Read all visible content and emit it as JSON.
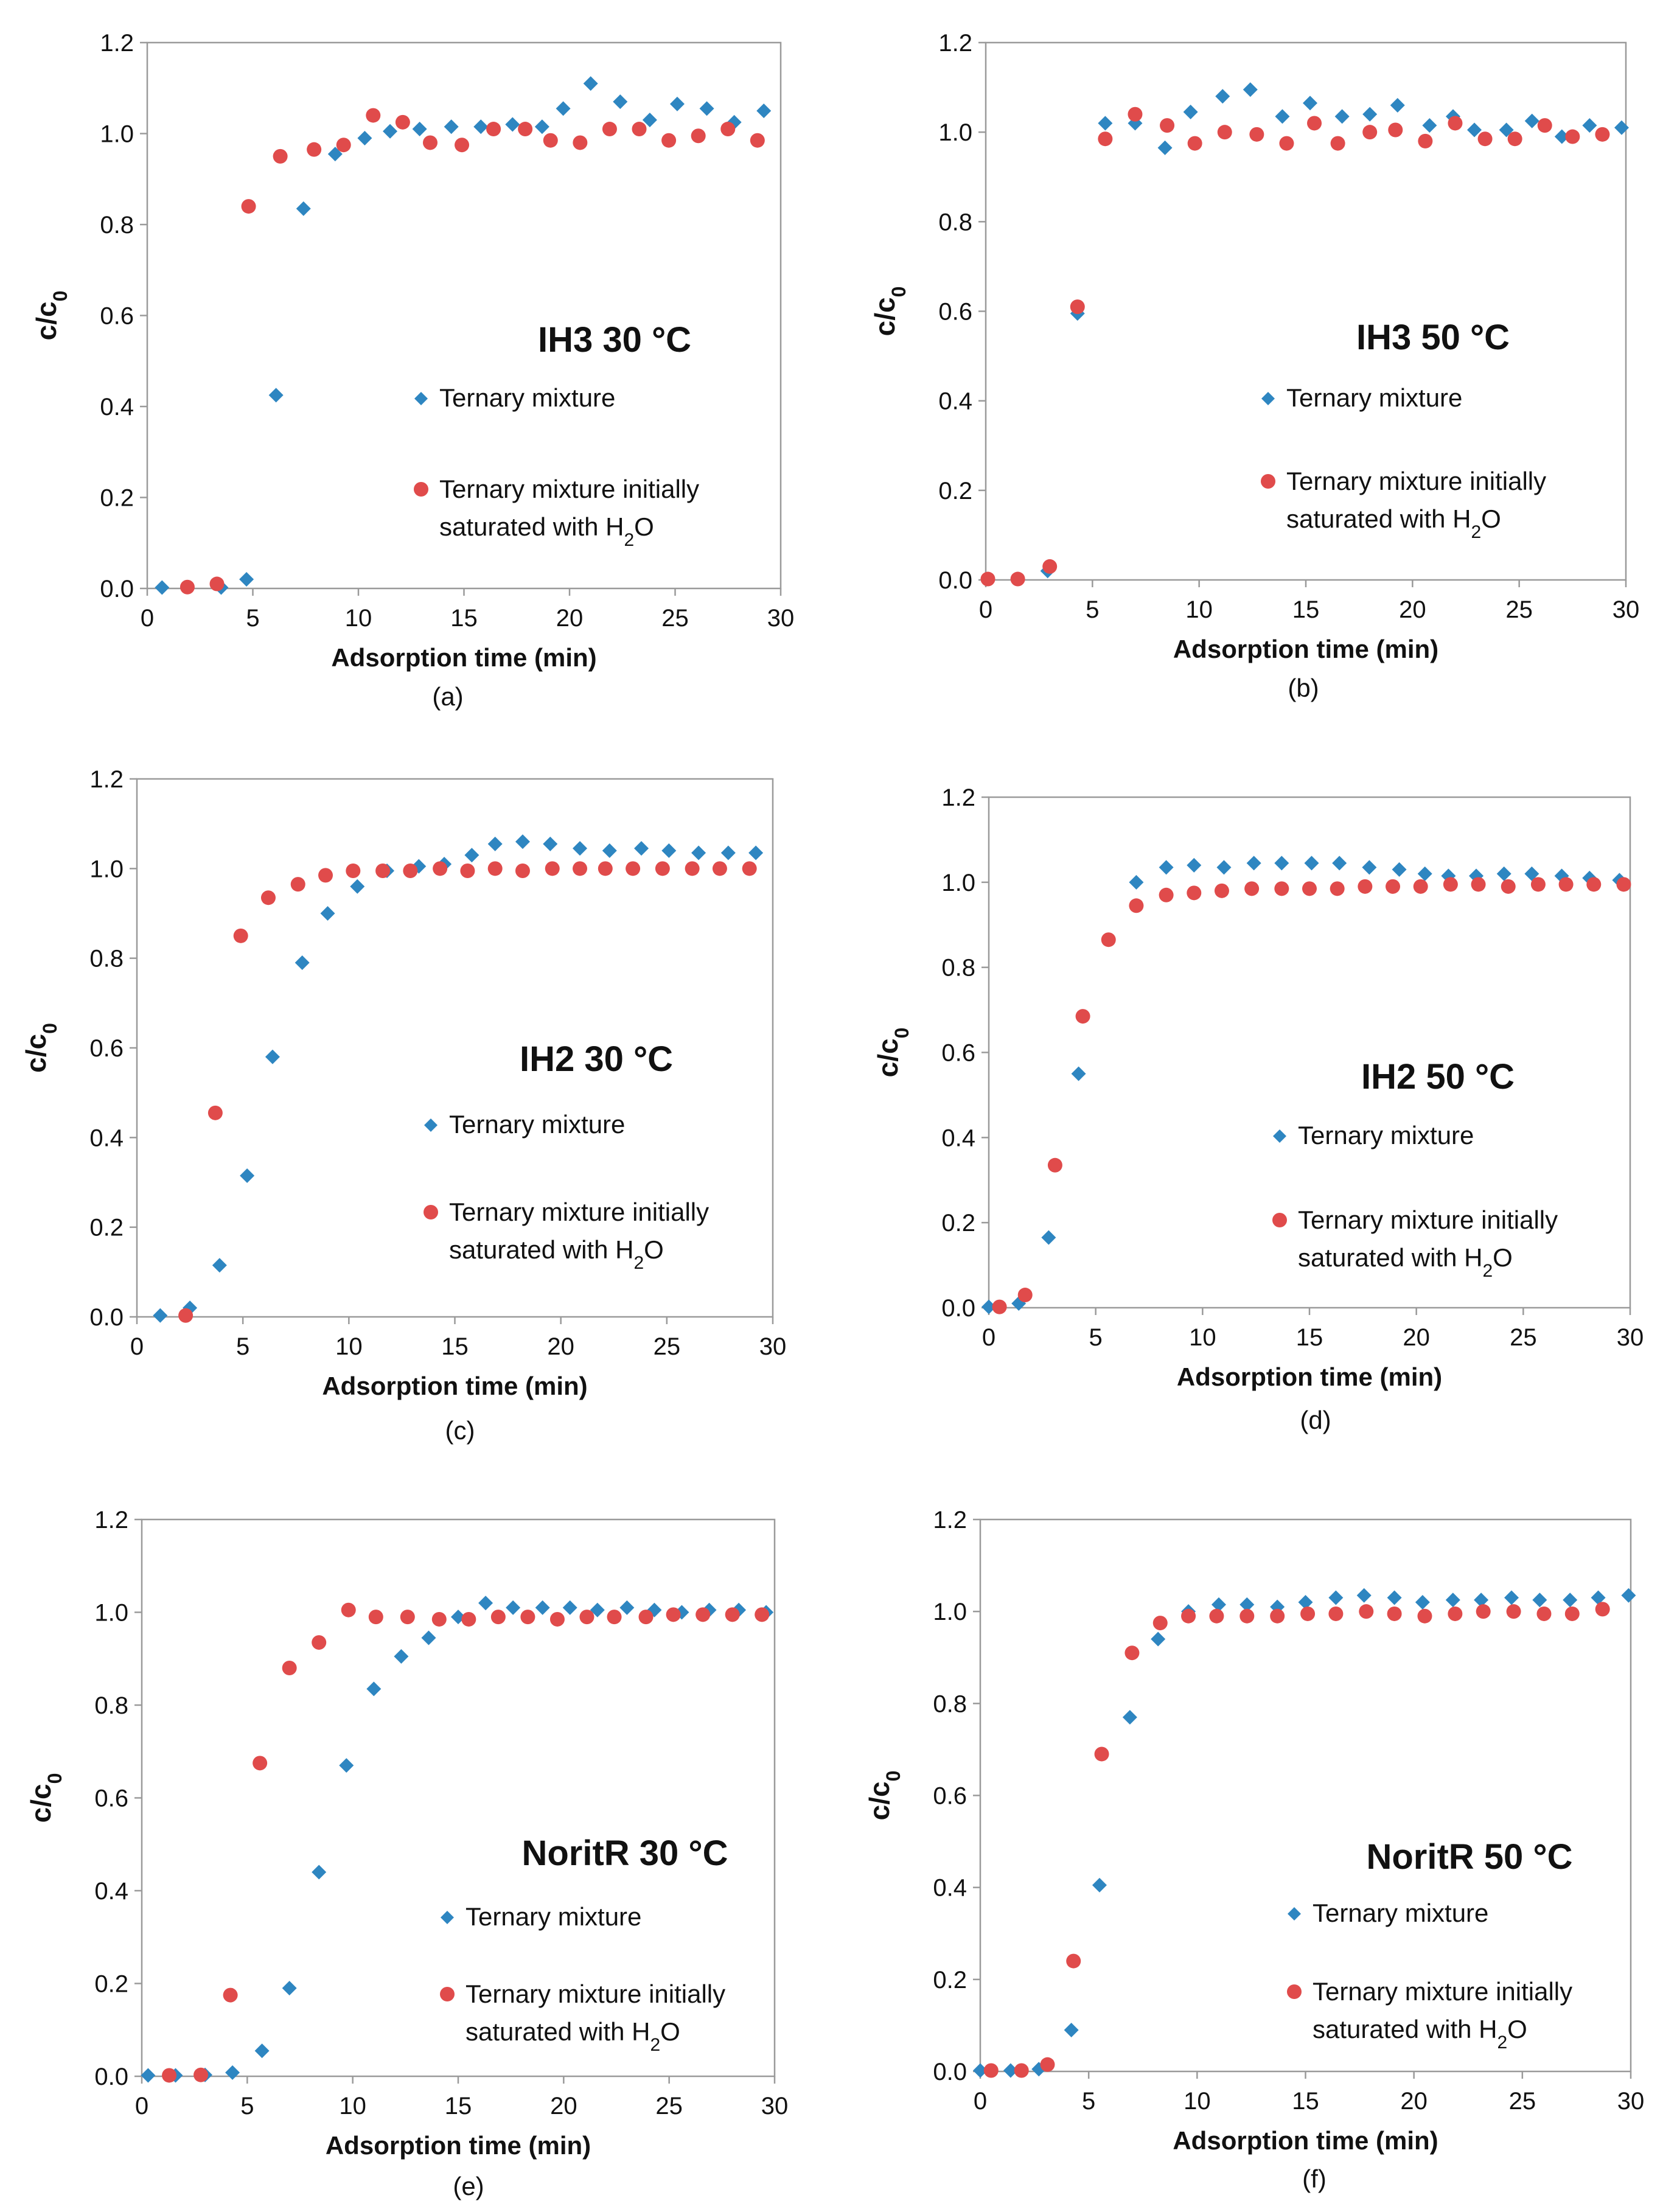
{
  "series_colors": {
    "ternary": "#2e86c1",
    "saturated": "#e04b4b"
  },
  "panel_layouts": [
    "grid-top-left",
    "grid-top-right",
    "grid-middle-left",
    "grid-middle-right",
    "grid-bottom-left",
    "grid-bottom-right"
  ],
  "chart_data": [
    {
      "type": "scatter",
      "caption": "(a)",
      "title": "IH3 30 °C",
      "xlabel": "Adsorption time (min)",
      "ylabel": "c/c",
      "ylabel_sub": "0",
      "xlim": [
        0,
        30
      ],
      "ylim": [
        0,
        1.2
      ],
      "xticks": [
        "0",
        "5",
        "10",
        "15",
        "20",
        "25",
        "30"
      ],
      "yticks": [
        "0.0",
        "0.2",
        "0.4",
        "0.6",
        "0.8",
        "1.0",
        "1.2"
      ],
      "legend": {
        "ternary": "Ternary mixture",
        "saturated_line1": "Ternary mixture initially",
        "saturated_line2_pre": "saturated with H",
        "saturated_line2_sub": "2",
        "saturated_line2_post": "O"
      },
      "series": [
        {
          "name": "Ternary mixture",
          "marker": "diamond",
          "x": [
            0.7,
            3.5,
            4.7,
            6.1,
            7.4,
            8.9,
            10.3,
            11.5,
            12.9,
            14.4,
            15.8,
            17.3,
            18.7,
            19.7,
            21.0,
            22.4,
            23.8,
            25.1,
            26.5,
            27.8,
            29.2
          ],
          "y": [
            0.002,
            0.002,
            0.02,
            0.425,
            0.835,
            0.955,
            0.99,
            1.005,
            1.01,
            1.015,
            1.015,
            1.02,
            1.015,
            1.055,
            1.11,
            1.07,
            1.03,
            1.065,
            1.055,
            1.025,
            1.05
          ]
        },
        {
          "name": "Ternary mixture initially saturated with H2O",
          "marker": "circle",
          "x": [
            1.9,
            3.3,
            4.8,
            6.3,
            7.9,
            9.3,
            10.7,
            12.1,
            13.4,
            14.9,
            16.4,
            17.9,
            19.1,
            20.5,
            21.9,
            23.3,
            24.7,
            26.1,
            27.5,
            28.9
          ],
          "y": [
            0.003,
            0.01,
            0.84,
            0.95,
            0.965,
            0.975,
            1.04,
            1.025,
            0.98,
            0.975,
            1.01,
            1.01,
            0.985,
            0.98,
            1.01,
            1.01,
            0.985,
            0.995,
            1.01,
            0.985
          ]
        }
      ]
    },
    {
      "type": "scatter",
      "caption": "(b)",
      "title": "IH3 50 °C",
      "xlabel": "Adsorption time (min)",
      "ylabel": "c/c",
      "ylabel_sub": "0",
      "xlim": [
        0,
        30
      ],
      "ylim": [
        0,
        1.2
      ],
      "xticks": [
        "0",
        "5",
        "10",
        "15",
        "20",
        "25",
        "30"
      ],
      "yticks": [
        "0.0",
        "0.2",
        "0.4",
        "0.6",
        "0.8",
        "1.0",
        "1.2"
      ],
      "legend": {
        "ternary": "Ternary mixture",
        "saturated_line1": "Ternary mixture initially",
        "saturated_line2_pre": "saturated with H",
        "saturated_line2_sub": "2",
        "saturated_line2_post": "O"
      },
      "series": [
        {
          "name": "Ternary mixture",
          "marker": "diamond",
          "x": [
            2.9,
            4.3,
            5.6,
            7.0,
            8.4,
            9.6,
            11.1,
            12.4,
            13.9,
            15.2,
            16.7,
            18.0,
            19.3,
            20.8,
            21.9,
            22.9,
            24.4,
            25.6,
            27.0,
            28.3,
            29.8
          ],
          "y": [
            0.02,
            0.595,
            1.02,
            1.02,
            0.965,
            1.045,
            1.08,
            1.095,
            1.035,
            1.065,
            1.035,
            1.04,
            1.06,
            1.015,
            1.035,
            1.005,
            1.005,
            1.025,
            0.99,
            1.015,
            1.01
          ]
        },
        {
          "name": "Ternary mixture initially saturated with H2O",
          "marker": "circle",
          "x": [
            0.1,
            1.5,
            3.0,
            4.3,
            5.6,
            7.0,
            8.5,
            9.8,
            11.2,
            12.7,
            14.1,
            15.4,
            16.5,
            18.0,
            19.2,
            20.6,
            22.0,
            23.4,
            24.8,
            26.2,
            27.5,
            28.9
          ],
          "y": [
            0.002,
            0.002,
            0.03,
            0.61,
            0.985,
            1.04,
            1.015,
            0.975,
            1.0,
            0.995,
            0.975,
            1.02,
            0.975,
            1.0,
            1.005,
            0.98,
            1.02,
            0.985,
            0.985,
            1.015,
            0.99,
            0.995
          ]
        }
      ]
    },
    {
      "type": "scatter",
      "caption": "(c)",
      "title": "IH2 30 °C",
      "xlabel": "Adsorption time (min)",
      "ylabel": "c/c",
      "ylabel_sub": "0",
      "xlim": [
        0,
        30
      ],
      "ylim": [
        0,
        1.2
      ],
      "xticks": [
        "0",
        "5",
        "10",
        "15",
        "20",
        "25",
        "30"
      ],
      "yticks": [
        "0.0",
        "0.2",
        "0.4",
        "0.6",
        "0.8",
        "1.0",
        "1.2"
      ],
      "legend": {
        "ternary": "Ternary mixture",
        "saturated_line1": "Ternary mixture initially",
        "saturated_line2_pre": "saturated with H",
        "saturated_line2_sub": "2",
        "saturated_line2_post": "O"
      },
      "series": [
        {
          "name": "Ternary mixture",
          "marker": "diamond",
          "x": [
            1.1,
            2.5,
            3.9,
            5.2,
            6.4,
            7.8,
            9.0,
            10.4,
            11.8,
            13.3,
            14.5,
            15.8,
            16.9,
            18.2,
            19.5,
            20.9,
            22.3,
            23.8,
            25.1,
            26.5,
            27.9,
            29.2
          ],
          "y": [
            0.003,
            0.02,
            0.115,
            0.315,
            0.58,
            0.79,
            0.9,
            0.96,
            0.995,
            1.005,
            1.01,
            1.03,
            1.055,
            1.06,
            1.055,
            1.045,
            1.04,
            1.045,
            1.04,
            1.035,
            1.035,
            1.035
          ]
        },
        {
          "name": "Ternary mixture initially saturated with H2O",
          "marker": "circle",
          "x": [
            2.3,
            3.7,
            4.9,
            6.2,
            7.6,
            8.9,
            10.2,
            11.6,
            12.9,
            14.3,
            15.6,
            16.9,
            18.2,
            19.6,
            20.9,
            22.1,
            23.4,
            24.8,
            26.2,
            27.5,
            28.9
          ],
          "y": [
            0.003,
            0.455,
            0.85,
            0.935,
            0.965,
            0.985,
            0.995,
            0.995,
            0.995,
            1.0,
            0.995,
            1.0,
            0.995,
            1.0,
            1.0,
            1.0,
            1.0,
            1.0,
            1.0,
            1.0,
            1.0
          ]
        }
      ]
    },
    {
      "type": "scatter",
      "caption": "(d)",
      "title": "IH2 50 °C",
      "xlabel": "Adsorption time (min)",
      "ylabel": "c/c",
      "ylabel_sub": "0",
      "xlim": [
        0,
        30
      ],
      "ylim": [
        0,
        1.2
      ],
      "xticks": [
        "0",
        "5",
        "10",
        "15",
        "20",
        "25",
        "30"
      ],
      "yticks": [
        "0.0",
        "0.2",
        "0.4",
        "0.6",
        "0.8",
        "1.0",
        "1.2"
      ],
      "legend": {
        "ternary": "Ternary mixture",
        "saturated_line1": "Ternary mixture initially",
        "saturated_line2_pre": "saturated with H",
        "saturated_line2_sub": "2",
        "saturated_line2_post": "O"
      },
      "series": [
        {
          "name": "Ternary mixture",
          "marker": "diamond",
          "x": [
            0.0,
            1.4,
            2.8,
            4.2,
            6.9,
            8.3,
            9.6,
            11.0,
            12.4,
            13.7,
            15.1,
            16.4,
            17.8,
            19.2,
            20.4,
            21.5,
            22.8,
            24.1,
            25.4,
            26.8,
            28.1,
            29.5
          ],
          "y": [
            0.002,
            0.01,
            0.165,
            0.55,
            1.0,
            1.035,
            1.04,
            1.035,
            1.045,
            1.045,
            1.045,
            1.045,
            1.035,
            1.03,
            1.02,
            1.015,
            1.015,
            1.02,
            1.02,
            1.015,
            1.01,
            1.005
          ]
        },
        {
          "name": "Ternary mixture initially saturated with H2O",
          "marker": "circle",
          "x": [
            0.5,
            1.7,
            3.1,
            4.4,
            5.6,
            6.9,
            8.3,
            9.6,
            10.9,
            12.3,
            13.7,
            15.0,
            16.3,
            17.6,
            18.9,
            20.2,
            21.6,
            22.9,
            24.3,
            25.7,
            27.0,
            28.3,
            29.7
          ],
          "y": [
            0.002,
            0.03,
            0.335,
            0.685,
            0.865,
            0.945,
            0.97,
            0.975,
            0.98,
            0.985,
            0.985,
            0.985,
            0.985,
            0.99,
            0.99,
            0.99,
            0.995,
            0.995,
            0.99,
            0.995,
            0.995,
            0.995,
            0.995
          ]
        }
      ]
    },
    {
      "type": "scatter",
      "caption": "(e)",
      "title": "NoritR 30 °C",
      "xlabel": "Adsorption time (min)",
      "ylabel": "c/c",
      "ylabel_sub": "0",
      "xlim": [
        0,
        30
      ],
      "ylim": [
        0,
        1.2
      ],
      "xticks": [
        "0",
        "5",
        "10",
        "15",
        "20",
        "25",
        "30"
      ],
      "yticks": [
        "0.0",
        "0.2",
        "0.4",
        "0.6",
        "0.8",
        "1.0",
        "1.2"
      ],
      "legend": {
        "ternary": "Ternary mixture",
        "saturated_line1": "Ternary mixture initially",
        "saturated_line2_pre": "saturated with H",
        "saturated_line2_sub": "2",
        "saturated_line2_post": "O"
      },
      "series": [
        {
          "name": "Ternary mixture",
          "marker": "diamond",
          "x": [
            0.3,
            1.6,
            3.0,
            4.3,
            5.7,
            7.0,
            8.4,
            9.7,
            11.0,
            12.3,
            13.6,
            15.0,
            16.3,
            17.6,
            19.0,
            20.3,
            21.6,
            23.0,
            24.3,
            25.6,
            26.9,
            28.3,
            29.6
          ],
          "y": [
            0.002,
            0.002,
            0.003,
            0.008,
            0.055,
            0.19,
            0.44,
            0.67,
            0.835,
            0.905,
            0.945,
            0.99,
            1.02,
            1.01,
            1.01,
            1.01,
            1.005,
            1.01,
            1.005,
            1.0,
            1.005,
            1.005,
            1.0
          ]
        },
        {
          "name": "Ternary mixture initially saturated with H2O",
          "marker": "circle",
          "x": [
            1.3,
            2.8,
            4.2,
            5.6,
            7.0,
            8.4,
            9.8,
            11.1,
            12.6,
            14.1,
            15.5,
            16.9,
            18.3,
            19.7,
            21.1,
            22.4,
            23.9,
            25.2,
            26.6,
            28.0,
            29.4
          ],
          "y": [
            0.002,
            0.003,
            0.175,
            0.675,
            0.88,
            0.935,
            1.005,
            0.99,
            0.99,
            0.985,
            0.985,
            0.99,
            0.99,
            0.985,
            0.99,
            0.99,
            0.99,
            0.995,
            0.995,
            0.995,
            0.995
          ]
        }
      ]
    },
    {
      "type": "scatter",
      "caption": "(f)",
      "title": "NoritR 50 °C",
      "xlabel": "Adsorption time (min)",
      "ylabel": "c/c",
      "ylabel_sub": "0",
      "xlim": [
        0,
        30
      ],
      "ylim": [
        0,
        1.2
      ],
      "xticks": [
        "0",
        "5",
        "10",
        "15",
        "20",
        "25",
        "30"
      ],
      "yticks": [
        "0.0",
        "0.2",
        "0.4",
        "0.6",
        "0.8",
        "1.0",
        "1.2"
      ],
      "legend": {
        "ternary": "Ternary mixture",
        "saturated_line1": "Ternary mixture initially",
        "saturated_line2_pre": "saturated with H",
        "saturated_line2_sub": "2",
        "saturated_line2_post": "O"
      },
      "series": [
        {
          "name": "Ternary mixture",
          "marker": "diamond",
          "x": [
            0.0,
            1.4,
            2.7,
            4.2,
            5.5,
            6.9,
            8.2,
            9.6,
            11.0,
            12.3,
            13.7,
            15.0,
            16.4,
            17.7,
            19.1,
            20.4,
            21.8,
            23.1,
            24.5,
            25.8,
            27.2,
            28.5,
            29.9
          ],
          "y": [
            0.002,
            0.002,
            0.005,
            0.09,
            0.405,
            0.77,
            0.94,
            1.0,
            1.015,
            1.015,
            1.01,
            1.02,
            1.03,
            1.035,
            1.03,
            1.02,
            1.025,
            1.025,
            1.03,
            1.025,
            1.025,
            1.03,
            1.035
          ]
        },
        {
          "name": "Ternary mixture initially saturated with H2O",
          "marker": "circle",
          "x": [
            0.5,
            1.9,
            3.1,
            4.3,
            5.6,
            7.0,
            8.3,
            9.6,
            10.9,
            12.3,
            13.7,
            15.1,
            16.4,
            17.8,
            19.1,
            20.5,
            21.9,
            23.2,
            24.6,
            26.0,
            27.3,
            28.7
          ],
          "y": [
            0.002,
            0.002,
            0.015,
            0.24,
            0.69,
            0.91,
            0.975,
            0.99,
            0.99,
            0.99,
            0.99,
            0.995,
            0.995,
            1.0,
            0.995,
            0.99,
            0.995,
            1.0,
            1.0,
            0.995,
            0.995,
            1.005
          ]
        }
      ]
    }
  ]
}
